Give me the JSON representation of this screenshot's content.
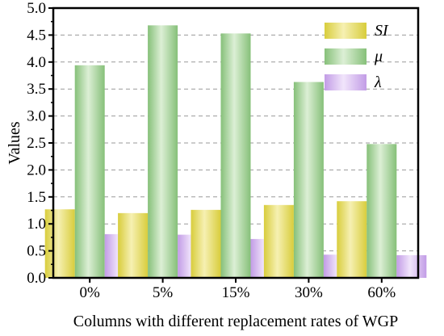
{
  "chart_data": {
    "type": "bar",
    "title": "",
    "xlabel": "Columns with different replacement rates of WGP",
    "ylabel": "Values",
    "categories": [
      "0%",
      "5%",
      "15%",
      "30%",
      "60%"
    ],
    "series": [
      {
        "name": "SI",
        "values": [
          1.27,
          1.2,
          1.26,
          1.35,
          1.42
        ],
        "color": "#d8cd3c",
        "light": "#f6f0b2"
      },
      {
        "name": "μ",
        "values": [
          3.94,
          4.68,
          4.53,
          3.63,
          2.48
        ],
        "color": "#86c079",
        "light": "#dcefd5"
      },
      {
        "name": "λ",
        "values": [
          0.81,
          0.8,
          0.72,
          0.43,
          0.42
        ],
        "color": "#c29ce6",
        "light": "#f1e5fb"
      }
    ],
    "ylim": [
      0,
      5.0
    ],
    "yticks": [
      "0.0",
      "0.5",
      "1.0",
      "1.5",
      "2.0",
      "2.5",
      "3.0",
      "3.5",
      "4.0",
      "4.5",
      "5.0"
    ],
    "grid": true,
    "legend_position": "top-right"
  }
}
